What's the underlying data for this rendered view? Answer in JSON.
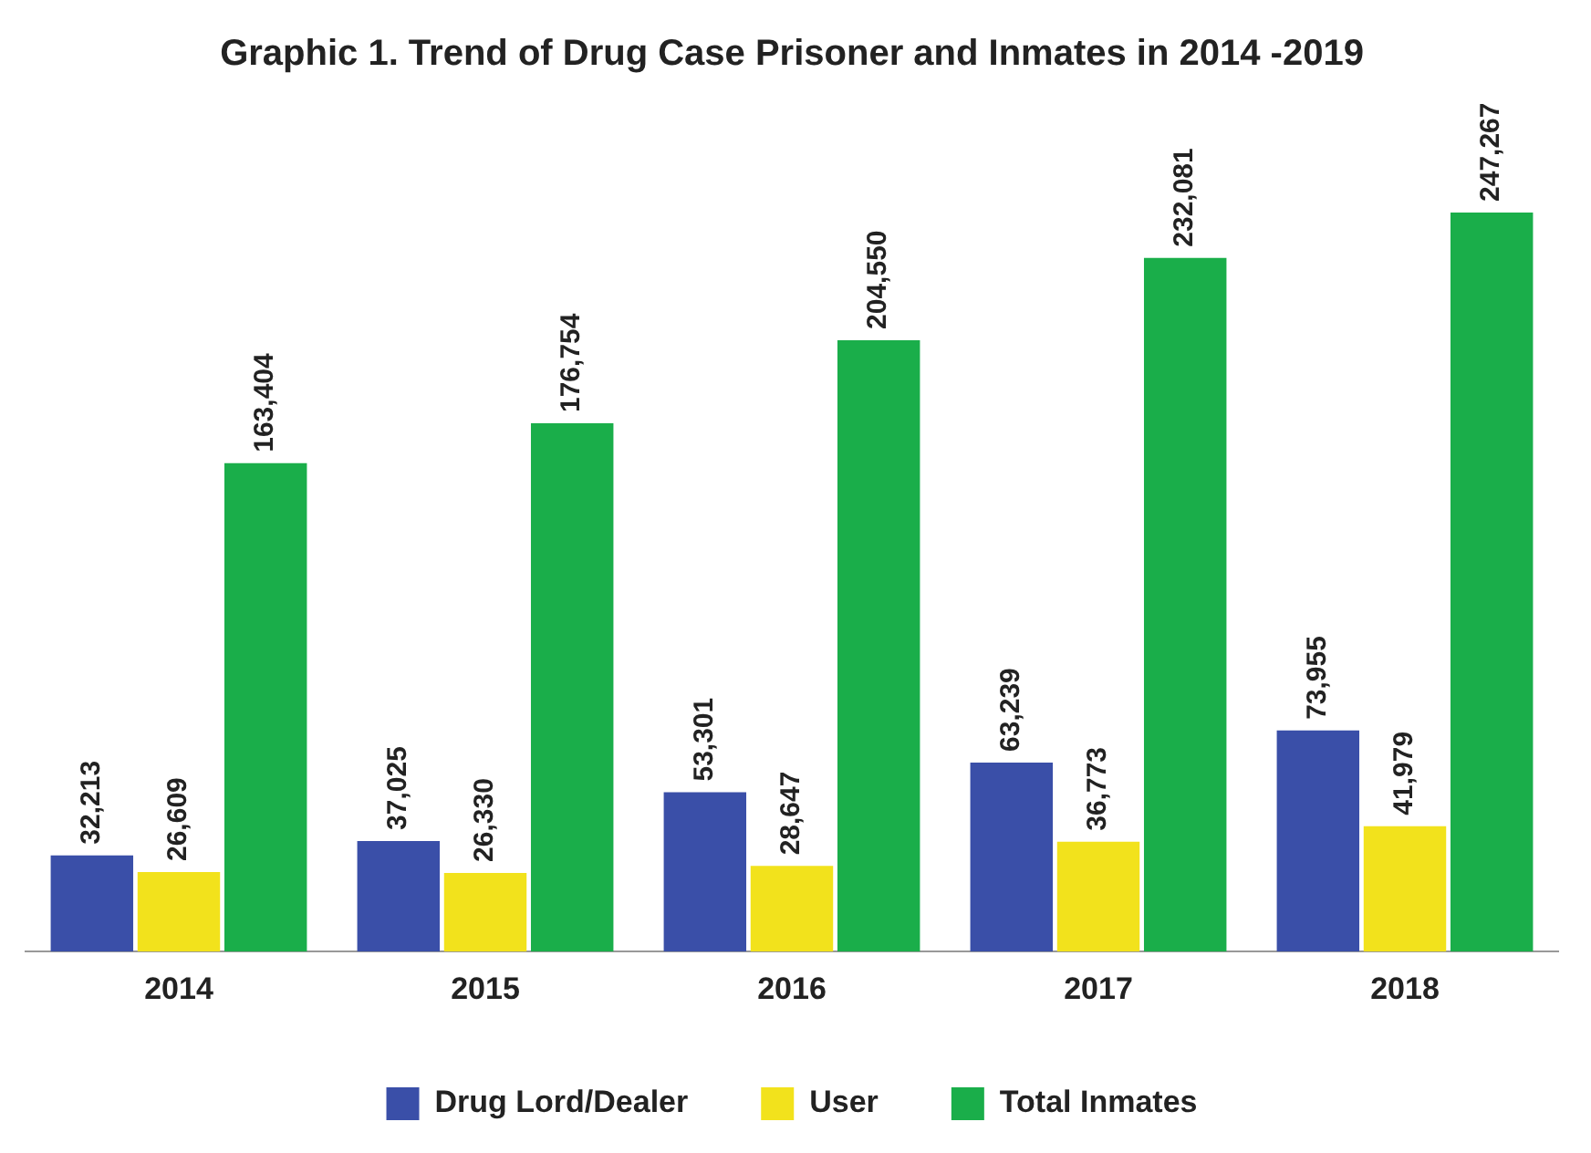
{
  "chart_data": {
    "type": "bar",
    "title": "Graphic 1. Trend of Drug Case Prisoner and Inmates in 2014 -2019",
    "categories": [
      "2014",
      "2015",
      "2016",
      "2017",
      "2018"
    ],
    "series": [
      {
        "name": "Drug Lord/Dealer",
        "color": "#3a4fa8",
        "values": [
          32213,
          37025,
          53301,
          63239,
          73955
        ],
        "value_labels": [
          "32,213",
          "37,025",
          "53,301",
          "63,239",
          "73,955"
        ]
      },
      {
        "name": "User",
        "color": "#f2e21c",
        "values": [
          26609,
          26330,
          28647,
          36773,
          41979
        ],
        "value_labels": [
          "26,609",
          "26,330",
          "28,647",
          "36,773",
          "41,979"
        ]
      },
      {
        "name": "Total Inmates",
        "color": "#1aae4a",
        "values": [
          163404,
          176754,
          204550,
          232081,
          247267
        ],
        "value_labels": [
          "163,404",
          "176,754",
          "204,550",
          "232,081",
          "247,267"
        ]
      }
    ],
    "legend": "bottom"
  }
}
